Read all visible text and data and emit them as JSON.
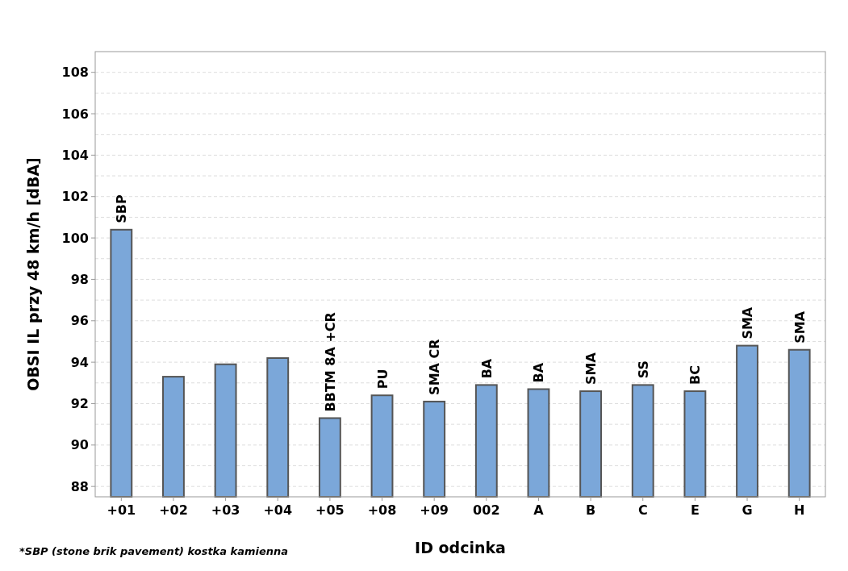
{
  "chart_data": {
    "type": "bar",
    "xlabel": "ID odcinka",
    "ylabel": "OBSI IL przy 48 km/h [dBA]",
    "categories": [
      "+01",
      "+02",
      "+03",
      "+04",
      "+05",
      "+08",
      "+09",
      "002",
      "A",
      "B",
      "C",
      "E",
      "G",
      "H"
    ],
    "values": [
      100.4,
      93.3,
      93.9,
      94.2,
      91.3,
      92.4,
      92.1,
      92.9,
      92.7,
      92.6,
      92.9,
      92.6,
      94.8,
      94.6
    ],
    "color": "#7ba7d9",
    "ylim": [
      87.5,
      109
    ],
    "yticks": [
      88,
      {
        "value": 89,
        "label": null
      },
      90,
      {
        "value": 91,
        "label": null
      },
      92,
      {
        "value": 93,
        "label": null
      },
      94,
      {
        "value": 95,
        "label": null
      },
      96,
      {
        "value": 97,
        "label": null
      },
      98,
      {
        "value": 99,
        "label": null
      },
      100,
      {
        "value": 101,
        "label": null
      },
      102,
      {
        "value": 103,
        "label": null
      },
      104,
      {
        "value": 105,
        "label": null
      },
      106,
      {
        "value": 107,
        "label": null
      },
      108
    ],
    "grid": "y",
    "annotations": [
      {
        "text": "SBP",
        "x": "+01",
        "y": 100.4
      },
      {
        "text": "BBTM 8A +CR",
        "x": "+05",
        "y": 91.3
      },
      {
        "text": "PU",
        "x": "+08",
        "y": 92.4
      },
      {
        "text": "SMA CR",
        "x": "+09",
        "y": 92.1
      },
      {
        "text": "BA",
        "x": "002",
        "y": 92.9
      },
      {
        "text": "BA",
        "x": "A",
        "y": 92.7
      },
      {
        "text": "SMA",
        "x": "B",
        "y": 92.6
      },
      {
        "text": "SS",
        "x": "C",
        "y": 92.9
      },
      {
        "text": "BC",
        "x": "E",
        "y": 92.6
      },
      {
        "text": "SMA",
        "x": "G",
        "y": 94.8
      },
      {
        "text": "SMA",
        "x": "H",
        "y": 94.6
      },
      "*SBP (stone brik pavement) kostka kamienna"
    ]
  }
}
